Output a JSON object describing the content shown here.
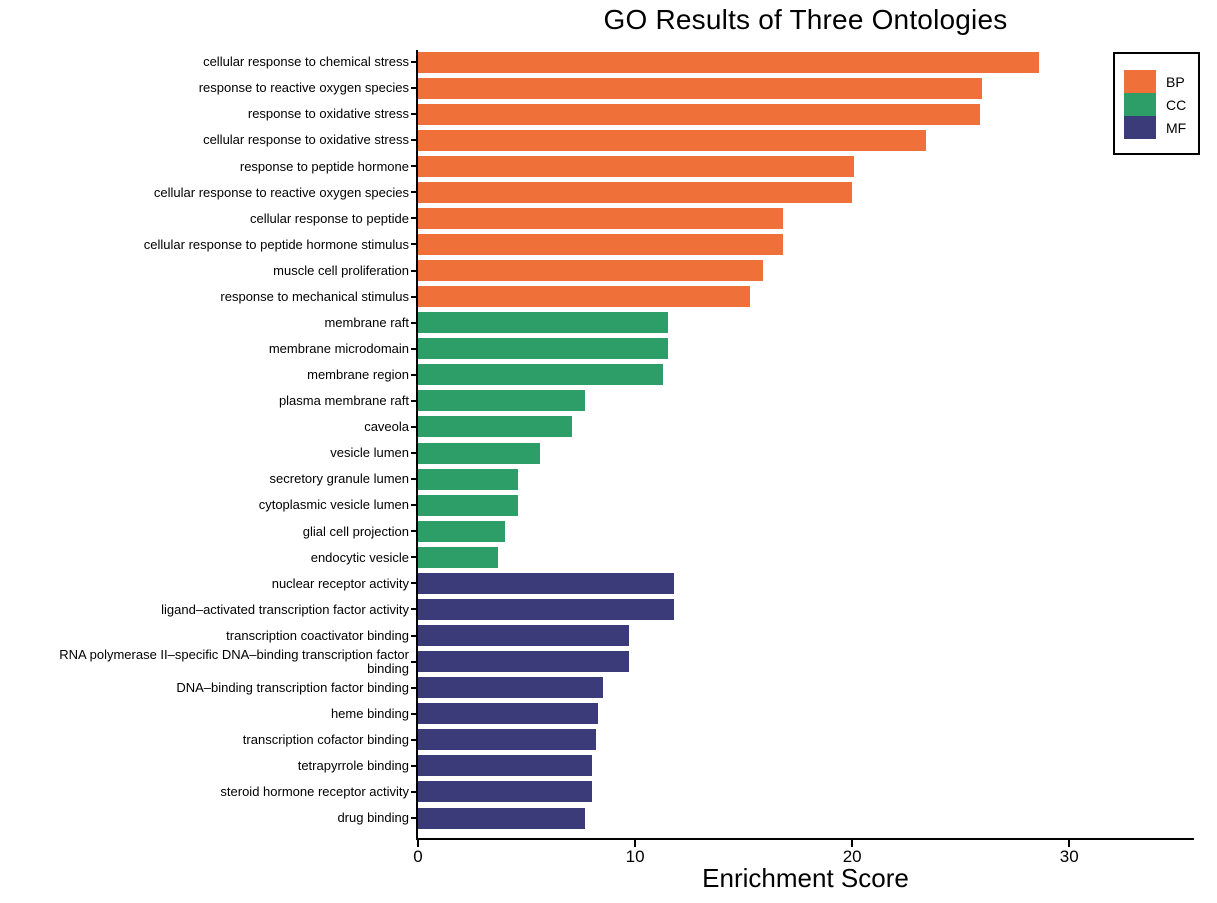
{
  "chart_data": {
    "type": "bar",
    "orientation": "horizontal",
    "title": "GO Results of Three Ontologies",
    "xlabel": "Enrichment Score",
    "xlim": [
      0,
      35.7
    ],
    "xticks": [
      0,
      10,
      20,
      30
    ],
    "grid": false,
    "legend": {
      "position": "top-right",
      "entries": [
        "BP",
        "CC",
        "MF"
      ]
    },
    "colors": {
      "BP": "#F0703A",
      "CC": "#2E9E68",
      "MF": "#3C3B79"
    },
    "bars": [
      {
        "label": "cellular response to chemical stress",
        "value": 28.6,
        "group": "BP"
      },
      {
        "label": "response to reactive oxygen species",
        "value": 26.0,
        "group": "BP"
      },
      {
        "label": "response to oxidative stress",
        "value": 25.9,
        "group": "BP"
      },
      {
        "label": "cellular response to oxidative stress",
        "value": 23.4,
        "group": "BP"
      },
      {
        "label": "response to peptide hormone",
        "value": 20.1,
        "group": "BP"
      },
      {
        "label": "cellular response to reactive oxygen species",
        "value": 20.0,
        "group": "BP"
      },
      {
        "label": "cellular response to peptide",
        "value": 16.8,
        "group": "BP"
      },
      {
        "label": "cellular response to peptide hormone stimulus",
        "value": 16.8,
        "group": "BP"
      },
      {
        "label": "muscle cell proliferation",
        "value": 15.9,
        "group": "BP"
      },
      {
        "label": "response to mechanical stimulus",
        "value": 15.3,
        "group": "BP"
      },
      {
        "label": "membrane raft",
        "value": 11.5,
        "group": "CC"
      },
      {
        "label": "membrane microdomain",
        "value": 11.5,
        "group": "CC"
      },
      {
        "label": "membrane region",
        "value": 11.3,
        "group": "CC"
      },
      {
        "label": "plasma membrane raft",
        "value": 7.7,
        "group": "CC"
      },
      {
        "label": "caveola",
        "value": 7.1,
        "group": "CC"
      },
      {
        "label": "vesicle lumen",
        "value": 5.6,
        "group": "CC"
      },
      {
        "label": "secretory granule lumen",
        "value": 4.6,
        "group": "CC"
      },
      {
        "label": "cytoplasmic vesicle lumen",
        "value": 4.6,
        "group": "CC"
      },
      {
        "label": "glial cell projection",
        "value": 4.0,
        "group": "CC"
      },
      {
        "label": "endocytic vesicle",
        "value": 3.7,
        "group": "CC"
      },
      {
        "label": "nuclear receptor activity",
        "value": 11.8,
        "group": "MF"
      },
      {
        "label": "ligand–activated transcription factor activity",
        "value": 11.8,
        "group": "MF"
      },
      {
        "label": "transcription coactivator binding",
        "value": 9.7,
        "group": "MF"
      },
      {
        "label": "RNA polymerase II–specific DNA–binding transcription factor\nbinding",
        "value": 9.7,
        "group": "MF"
      },
      {
        "label": "DNA–binding transcription factor binding",
        "value": 8.5,
        "group": "MF"
      },
      {
        "label": "heme binding",
        "value": 8.3,
        "group": "MF"
      },
      {
        "label": "transcription cofactor binding",
        "value": 8.2,
        "group": "MF"
      },
      {
        "label": "tetrapyrrole binding",
        "value": 8.0,
        "group": "MF"
      },
      {
        "label": "steroid hormone receptor activity",
        "value": 8.0,
        "group": "MF"
      },
      {
        "label": "drug binding",
        "value": 7.7,
        "group": "MF"
      }
    ]
  }
}
